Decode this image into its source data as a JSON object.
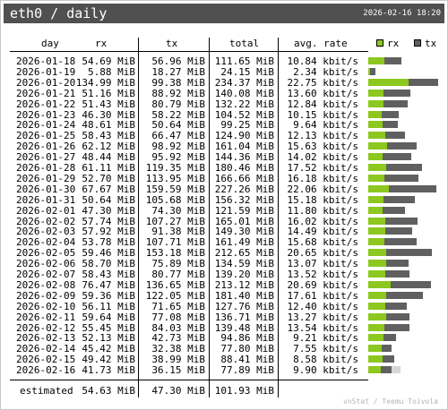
{
  "header": {
    "title": "eth0 / daily",
    "datetime": "2026-02-16 18:20"
  },
  "columns": [
    "day",
    "rx",
    "tx",
    "total",
    "avg. rate"
  ],
  "legend": {
    "rx": "rx",
    "tx": "tx"
  },
  "colors": {
    "rx": "#8cc81e",
    "tx": "#606060",
    "tx_estimate": "#d7d7d7",
    "titlebar": "#505050"
  },
  "chart_data": {
    "type": "bar",
    "stacked": true,
    "categories": [
      "2026-01-18",
      "2026-01-19",
      "2026-01-20",
      "2026-01-21",
      "2026-01-22",
      "2026-01-23",
      "2026-01-24",
      "2026-01-25",
      "2026-01-26",
      "2026-01-27",
      "2026-01-28",
      "2026-01-29",
      "2026-01-30",
      "2026-01-31",
      "2026-02-01",
      "2026-02-02",
      "2026-02-03",
      "2026-02-04",
      "2026-02-05",
      "2026-02-06",
      "2026-02-07",
      "2026-02-08",
      "2026-02-09",
      "2026-02-10",
      "2026-02-11",
      "2026-02-12",
      "2026-02-13",
      "2026-02-14",
      "2026-02-15",
      "2026-02-16"
    ],
    "series": [
      {
        "name": "rx",
        "values": [
          54.69,
          5.88,
          134.99,
          51.16,
          51.43,
          46.3,
          48.61,
          58.43,
          62.12,
          48.44,
          61.11,
          52.7,
          67.67,
          50.64,
          47.3,
          57.74,
          57.92,
          53.78,
          59.46,
          58.7,
          58.43,
          76.47,
          59.36,
          56.11,
          59.64,
          55.45,
          52.13,
          45.42,
          49.42,
          41.73
        ]
      },
      {
        "name": "tx",
        "values": [
          56.96,
          18.27,
          99.38,
          88.92,
          80.79,
          58.22,
          50.64,
          66.47,
          98.92,
          95.92,
          119.35,
          113.95,
          159.59,
          105.68,
          74.3,
          107.27,
          91.38,
          107.71,
          153.18,
          75.89,
          80.77,
          136.65,
          122.05,
          71.65,
          77.08,
          84.03,
          42.73,
          32.38,
          38.99,
          36.15
        ]
      }
    ],
    "table": {
      "rx": [
        "54.69 MiB",
        "5.88 MiB",
        "134.99 MiB",
        "51.16 MiB",
        "51.43 MiB",
        "46.30 MiB",
        "48.61 MiB",
        "58.43 MiB",
        "62.12 MiB",
        "48.44 MiB",
        "61.11 MiB",
        "52.70 MiB",
        "67.67 MiB",
        "50.64 MiB",
        "47.30 MiB",
        "57.74 MiB",
        "57.92 MiB",
        "53.78 MiB",
        "59.46 MiB",
        "58.70 MiB",
        "58.43 MiB",
        "76.47 MiB",
        "59.36 MiB",
        "56.11 MiB",
        "59.64 MiB",
        "55.45 MiB",
        "52.13 MiB",
        "45.42 MiB",
        "49.42 MiB",
        "41.73 MiB"
      ],
      "tx": [
        "56.96 MiB",
        "18.27 MiB",
        "99.38 MiB",
        "88.92 MiB",
        "80.79 MiB",
        "58.22 MiB",
        "50.64 MiB",
        "66.47 MiB",
        "98.92 MiB",
        "95.92 MiB",
        "119.35 MiB",
        "113.95 MiB",
        "159.59 MiB",
        "105.68 MiB",
        "74.30 MiB",
        "107.27 MiB",
        "91.38 MiB",
        "107.71 MiB",
        "153.18 MiB",
        "75.89 MiB",
        "80.77 MiB",
        "136.65 MiB",
        "122.05 MiB",
        "71.65 MiB",
        "77.08 MiB",
        "84.03 MiB",
        "42.73 MiB",
        "32.38 MiB",
        "38.99 MiB",
        "36.15 MiB"
      ],
      "total": [
        "111.65 MiB",
        "24.15 MiB",
        "234.37 MiB",
        "140.08 MiB",
        "132.22 MiB",
        "104.52 MiB",
        "99.25 MiB",
        "124.90 MiB",
        "161.04 MiB",
        "144.36 MiB",
        "180.46 MiB",
        "166.66 MiB",
        "227.26 MiB",
        "156.32 MiB",
        "121.59 MiB",
        "165.01 MiB",
        "149.30 MiB",
        "161.49 MiB",
        "212.65 MiB",
        "134.59 MiB",
        "139.20 MiB",
        "213.12 MiB",
        "181.40 MiB",
        "127.76 MiB",
        "136.71 MiB",
        "139.48 MiB",
        "94.86 MiB",
        "77.80 MiB",
        "88.41 MiB",
        "77.89 MiB"
      ],
      "avg_rate": [
        "10.84 kbit/s",
        "2.34 kbit/s",
        "22.75 kbit/s",
        "13.60 kbit/s",
        "12.84 kbit/s",
        "10.15 kbit/s",
        "9.64 kbit/s",
        "12.13 kbit/s",
        "15.63 kbit/s",
        "14.02 kbit/s",
        "17.52 kbit/s",
        "16.18 kbit/s",
        "22.06 kbit/s",
        "15.18 kbit/s",
        "11.80 kbit/s",
        "16.02 kbit/s",
        "14.49 kbit/s",
        "15.68 kbit/s",
        "20.65 kbit/s",
        "13.07 kbit/s",
        "13.52 kbit/s",
        "20.69 kbit/s",
        "17.61 kbit/s",
        "12.40 kbit/s",
        "13.27 kbit/s",
        "13.54 kbit/s",
        "9.21 kbit/s",
        "7.55 kbit/s",
        "8.58 kbit/s",
        "9.90 kbit/s"
      ]
    },
    "estimate": {
      "label": "estimated",
      "rx": "54.63 MiB",
      "tx": "47.30 MiB",
      "total": "101.93 MiB",
      "rx_value": 54.63,
      "tx_value": 47.3
    }
  },
  "footer": "vnStat / Teemu Toivola"
}
